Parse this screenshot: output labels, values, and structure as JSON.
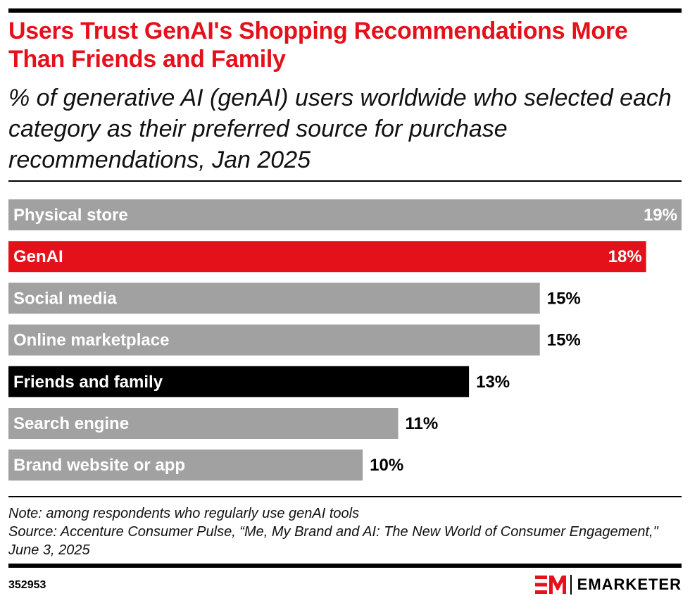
{
  "header": {
    "title": "Users Trust GenAI's Shopping Recommendations More Than Friends and Family",
    "subtitle": "% of generative AI (genAI) users worldwide who selected each category as their preferred source for purchase recommendations, Jan 2025"
  },
  "chart_data": {
    "type": "bar",
    "orientation": "horizontal",
    "title": "Users Trust GenAI's Shopping Recommendations More Than Friends and Family",
    "unit": "%",
    "categories": [
      "Physical store",
      "GenAI",
      "Social media",
      "Online marketplace",
      "Friends and family",
      "Search engine",
      "Brand website or app"
    ],
    "values": [
      19,
      18,
      15,
      15,
      13,
      11,
      10
    ],
    "value_labels": [
      "19%",
      "18%",
      "15%",
      "15%",
      "13%",
      "11%",
      "10%"
    ],
    "colors": [
      "#a1a1a1",
      "#e4111b",
      "#a1a1a1",
      "#a1a1a1",
      "#000000",
      "#a1a1a1",
      "#a1a1a1"
    ],
    "xlim": [
      0,
      19
    ],
    "grid": false,
    "legend": "none"
  },
  "footer": {
    "note": "Note: among respondents who regularly use genAI tools",
    "source": "Source: Accenture Consumer Pulse, “Me, My Brand and AI: The New World of Consumer Engagement,\" June 3, 2025",
    "chart_id": "352953",
    "brand": "EMARKETER",
    "brand_color": "#e4111b"
  }
}
